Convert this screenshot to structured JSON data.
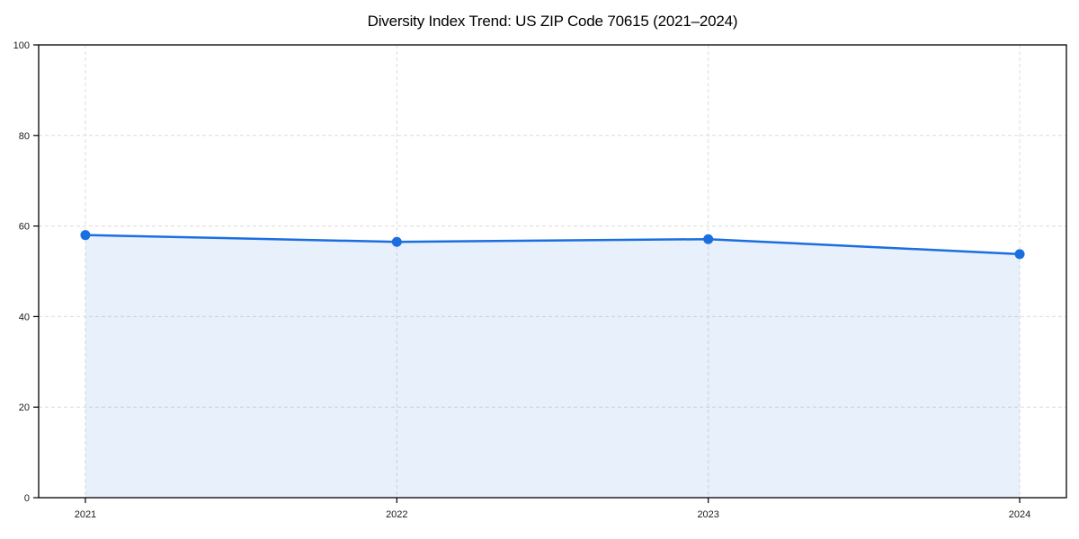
{
  "figure": {
    "background": "#ffffff"
  },
  "chart_data": {
    "type": "area",
    "title": "Diversity Index Trend: US ZIP Code 70615 (2021–2024)",
    "x": [
      2021,
      2022,
      2023,
      2024
    ],
    "xticklabels": [
      "2021",
      "2022",
      "2023",
      "2024"
    ],
    "series": [
      {
        "name": "Diversity Index",
        "values": [
          58.0,
          56.5,
          57.1,
          53.8
        ]
      }
    ],
    "xlabel": "",
    "ylabel": "",
    "ylim": [
      0,
      100
    ],
    "yticks": [
      0,
      20,
      40,
      60,
      80,
      100
    ],
    "ytick_labels": [
      "0",
      "20",
      "40",
      "60",
      "80",
      "100"
    ],
    "x_margin_fraction": 0.05,
    "grid": true,
    "grid_style": "dashed",
    "legend": "none",
    "marker": "circle",
    "marker_radius": 5.5,
    "line_width": 2.5,
    "fill_opacity": 0.1,
    "colors": {
      "line": "#1a6ee0",
      "marker": "#1a6ee0",
      "fill": "#1a6ee0",
      "grid": "#dcdcdc",
      "spines": "#000000",
      "ticks": "#000000",
      "tick_labels": "#1a1a1a",
      "title": "#000000",
      "background": "#ffffff"
    }
  }
}
